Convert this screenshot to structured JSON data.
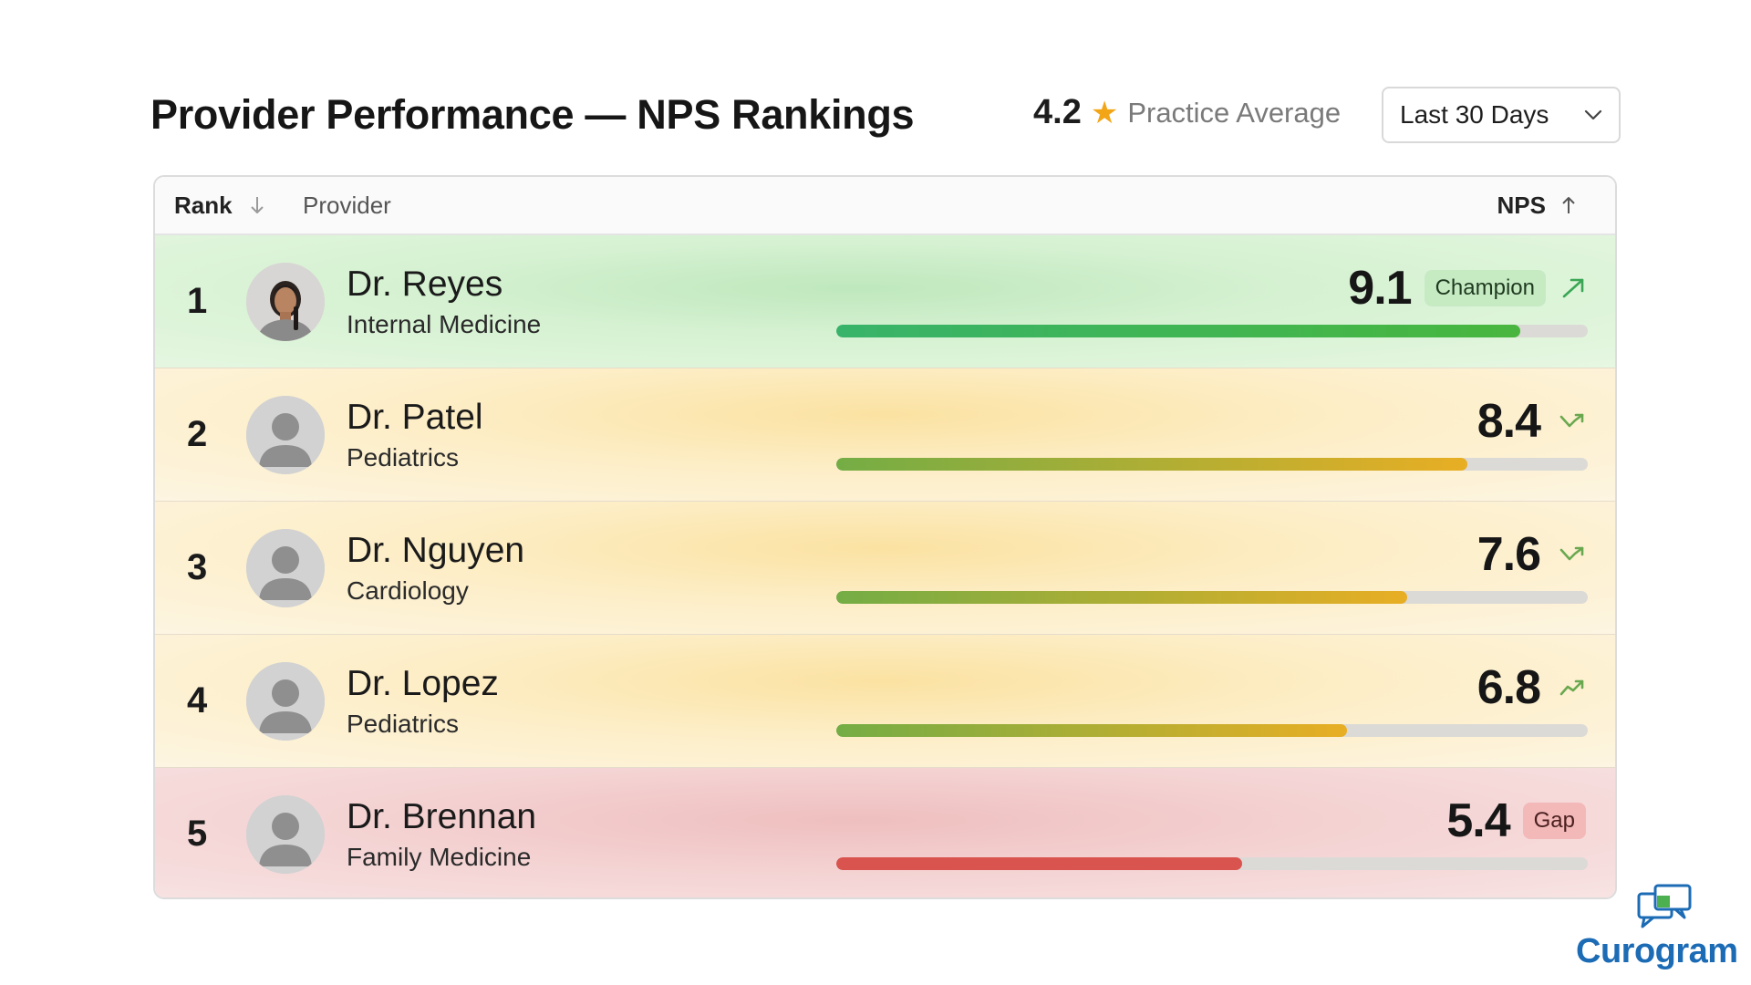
{
  "header": {
    "title": "Provider Performance — NPS Rankings",
    "practice_average_value": "4.2",
    "practice_average_label": "Practice Average",
    "date_range": "Last 30 Days"
  },
  "table": {
    "columns": {
      "rank": "Rank",
      "provider": "Provider",
      "nps": "NPS"
    },
    "nps_scale_max": 10,
    "rows": [
      {
        "rank": "1",
        "name": "Dr. Reyes",
        "specialty": "Internal Medicine",
        "nps": "9.1",
        "badge": "Champion",
        "trend": "up-strong",
        "tier": "champion"
      },
      {
        "rank": "2",
        "name": "Dr. Patel",
        "specialty": "Pediatrics",
        "nps": "8.4",
        "badge": "",
        "trend": "up-dip",
        "tier": "mid"
      },
      {
        "rank": "3",
        "name": "Dr. Nguyen",
        "specialty": "Cardiology",
        "nps": "7.6",
        "badge": "",
        "trend": "up-dip",
        "tier": "mid"
      },
      {
        "rank": "4",
        "name": "Dr. Lopez",
        "specialty": "Pediatrics",
        "nps": "6.8",
        "badge": "",
        "trend": "up",
        "tier": "mid"
      },
      {
        "rank": "5",
        "name": "Dr. Brennan",
        "specialty": "Family Medicine",
        "nps": "5.4",
        "badge": "Gap",
        "trend": "none",
        "tier": "gap"
      }
    ]
  },
  "brand": {
    "name": "Curogram",
    "primary_color": "#1c6bb5",
    "icon": "chat-bubbles-icon"
  },
  "colors": {
    "star": "#f2a516",
    "champion_bar": "#48b63e",
    "gap_bar": "#d9534f",
    "mid_bar_end": "#e8ae24"
  }
}
